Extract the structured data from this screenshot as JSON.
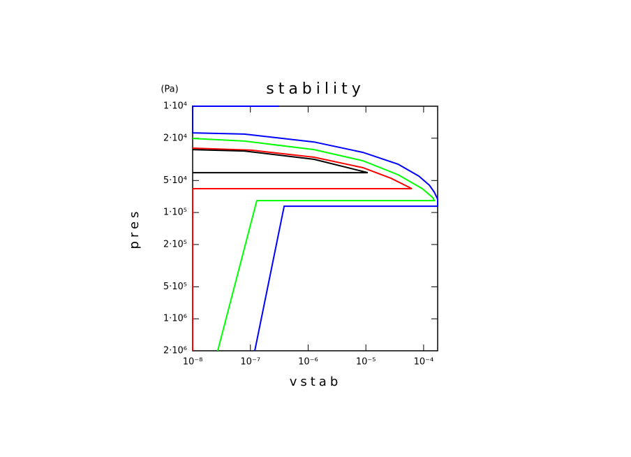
{
  "chart_data": {
    "type": "line",
    "title": "stability",
    "x_label": "vstab",
    "y_label": "pres",
    "y_unit": "(Pa)",
    "xscale": "log",
    "yscale": "log",
    "y_reversed": true,
    "xlim": [
      1e-08,
      0.000175
    ],
    "ylim": [
      10000,
      2000000
    ],
    "xticks": [
      {
        "value": 1e-08,
        "label": "10⁻⁸"
      },
      {
        "value": 1e-07,
        "label": "10⁻⁷"
      },
      {
        "value": 1e-06,
        "label": "10⁻⁶"
      },
      {
        "value": 1e-05,
        "label": "10⁻⁵"
      },
      {
        "value": 0.0001,
        "label": "10⁻⁴"
      }
    ],
    "yticks": [
      {
        "value": 10000,
        "label": "1·10⁴"
      },
      {
        "value": 20000,
        "label": "2·10⁴"
      },
      {
        "value": 50000,
        "label": "5·10⁴"
      },
      {
        "value": 100000,
        "label": "1·10⁵"
      },
      {
        "value": 200000,
        "label": "2·10⁵"
      },
      {
        "value": 500000,
        "label": "5·10⁵"
      },
      {
        "value": 1000000,
        "label": "1·10⁶"
      },
      {
        "value": 2000000,
        "label": "2·10⁶"
      }
    ],
    "series": [
      {
        "color": "#0000ff",
        "x": [
          3.16e-07,
          1e-08,
          1e-08,
          7.85e-08,
          1.27e-06,
          8.9e-06,
          3.6e-05,
          8.3e-05,
          0.000126,
          0.000153,
          0.000175,
          0.000175,
          3.84e-07,
          1.19e-07
        ],
        "values": [
          10000,
          10000,
          17800,
          18300,
          21700,
          27200,
          35100,
          45500,
          55400,
          64400,
          75000,
          87300,
          87300,
          2000000
        ]
      },
      {
        "color": "#00ff00",
        "x": [
          1e-08,
          7.85e-08,
          1.27e-06,
          8.9e-06,
          3.6e-05,
          9.5e-05,
          0.000145,
          0.000153,
          1.29e-07,
          2.72e-08
        ],
        "values": [
          20100,
          21300,
          25600,
          32600,
          44100,
          59700,
          72700,
          77300,
          77300,
          2000000
        ]
      },
      {
        "color": "#ff0000",
        "x": [
          1e-08,
          1.04e-07,
          1.27e-06,
          8.9e-06,
          2.72e-05,
          6.27e-05,
          1e-08,
          1e-08
        ],
        "values": [
          24800,
          25900,
          30200,
          37900,
          47600,
          59700,
          59700,
          2000000
        ]
      },
      {
        "color": "#000000",
        "x": [
          1e-08,
          7.85e-08,
          1.27e-06,
          1.08e-05,
          1e-08
        ],
        "values": [
          25600,
          26400,
          31600,
          42200,
          42200
        ]
      }
    ]
  }
}
